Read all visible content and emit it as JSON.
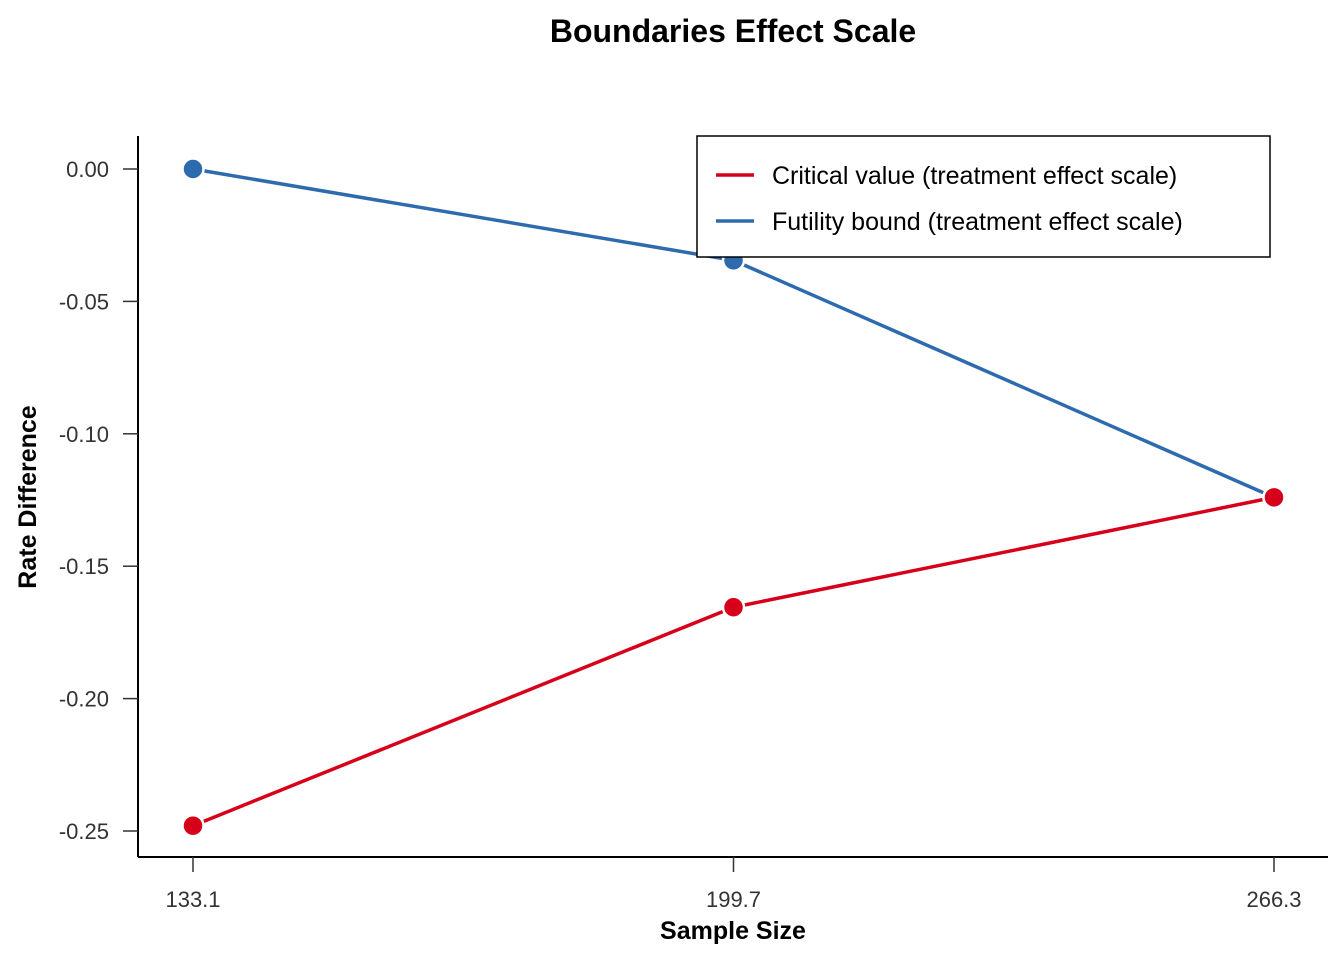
{
  "chart_data": {
    "type": "line",
    "title": "Boundaries Effect Scale",
    "xlabel": "Sample Size",
    "ylabel": "Rate Difference",
    "x": [
      133.1,
      199.7,
      266.3
    ],
    "x_tick_labels": [
      "133.1",
      "199.7",
      "266.3"
    ],
    "y_ticks": [
      0,
      -0.05,
      -0.1,
      -0.15,
      -0.2,
      -0.25
    ],
    "y_tick_labels": [
      "0.00",
      "-0.05",
      "-0.10",
      "-0.15",
      "-0.20",
      "-0.25"
    ],
    "ylim": [
      -0.26,
      0.012
    ],
    "grid": false,
    "legend_position": "top-right",
    "series": [
      {
        "name": "Critical value (treatment effect scale)",
        "color": "#D7001A",
        "values": [
          -0.248,
          -0.1655,
          -0.124
        ]
      },
      {
        "name": "Futility bound (treatment effect scale)",
        "color": "#2E6BAE",
        "values": [
          0.0,
          -0.0345,
          -0.124
        ]
      }
    ]
  }
}
